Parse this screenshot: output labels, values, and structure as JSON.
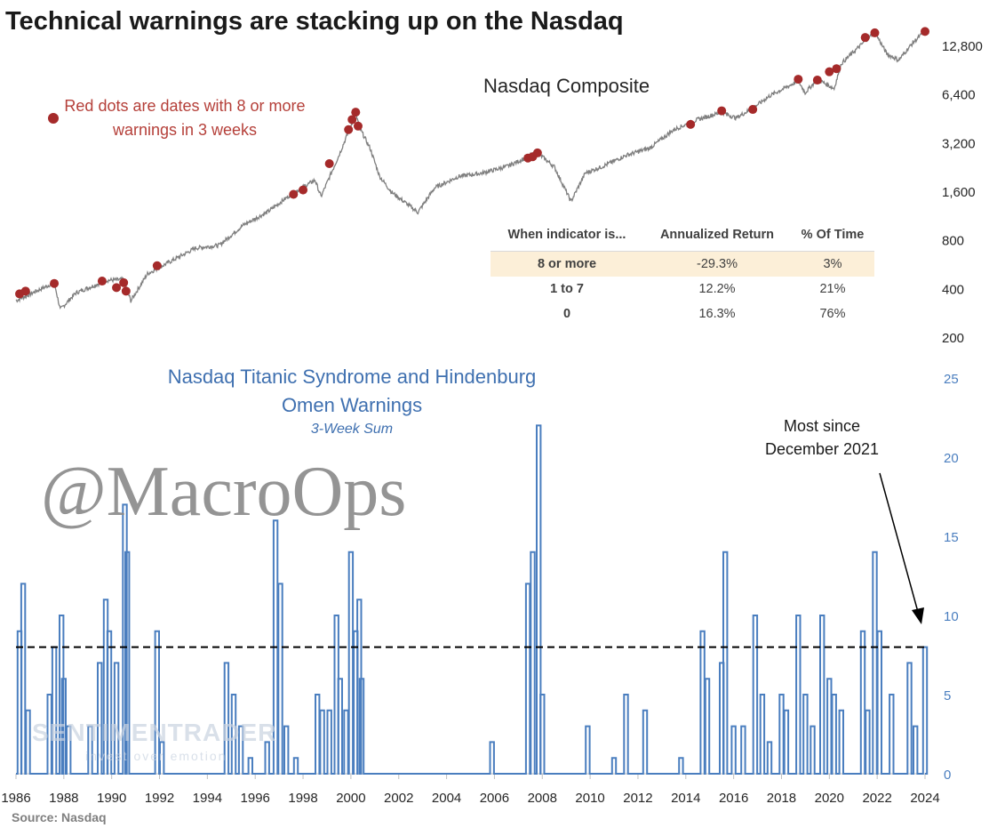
{
  "title": "Technical warnings are stacking up on the Nasdaq",
  "source": "Source: Nasdaq",
  "watermark": "@MacroOps",
  "logo_text": "SENTIMENTRADER",
  "logo_sub": "invest over emotion",
  "legend_text": "Red dots are dates with 8 or more warnings in 3 weeks",
  "annotation": "Most since December 2021",
  "colors": {
    "price_line": "#7f7f7f",
    "dots": "#a52a2a",
    "warnings": "#4a7ebf",
    "threshold": "#000000",
    "highlight_row": "#fcefd8"
  },
  "table": {
    "headers": [
      "When indicator is...",
      "Annualized Return",
      "% Of Time"
    ],
    "rows": [
      {
        "label": "8 or more",
        "ret": "-29.3%",
        "time": "3%"
      },
      {
        "label": "1 to 7",
        "ret": "12.2%",
        "time": "21%"
      },
      {
        "label": "0",
        "ret": "16.3%",
        "time": "76%"
      }
    ]
  },
  "chart_data": [
    {
      "type": "line",
      "title": "Nasdaq Composite",
      "y_scale": "log",
      "ylim": [
        200,
        18000
      ],
      "yticks": [
        200,
        400,
        800,
        1600,
        3200,
        6400,
        12800
      ],
      "ytick_labels": [
        "200",
        "400",
        "800",
        "1,600",
        "3,200",
        "6,400",
        "12,800"
      ],
      "series": [
        {
          "x": [
            1986,
            1987.6,
            1987.85,
            1988.5,
            1989.8,
            1990.5,
            1990.8,
            1991.5,
            1992.5,
            1993.5,
            1994.5,
            1995.5,
            1996.5,
            1997.5,
            1998.5,
            1998.75,
            1999.5,
            2000.2,
            2000.4,
            2000.8,
            2001.2,
            2001.7,
            2002.8,
            2003.5,
            2004.5,
            2005.5,
            2006.5,
            2007.8,
            2008.5,
            2009.2,
            2009.8,
            2010.5,
            2011.5,
            2012.5,
            2013.5,
            2014.5,
            2015.5,
            2016.1,
            2016.8,
            2017.5,
            2018.7,
            2018.99,
            2019.5,
            2020.2,
            2020.5,
            2021.9,
            2022.4,
            2022.9,
            2023.5,
            2024.0
          ],
          "values": [
            340,
            440,
            300,
            380,
            455,
            460,
            340,
            500,
            600,
            720,
            750,
            1000,
            1200,
            1550,
            1900,
            1500,
            2700,
            4900,
            3900,
            3000,
            2000,
            1600,
            1200,
            1700,
            2000,
            2100,
            2300,
            2800,
            2300,
            1400,
            2100,
            2300,
            2700,
            3000,
            3900,
            4500,
            5000,
            4600,
            5300,
            6300,
            7800,
            6600,
            8000,
            7000,
            10000,
            15700,
            11500,
            10500,
            13500,
            15800
          ]
        }
      ],
      "red_dots": [
        {
          "x": 1986.15,
          "y": 375
        },
        {
          "x": 1986.4,
          "y": 390
        },
        {
          "x": 1987.6,
          "y": 435
        },
        {
          "x": 1989.6,
          "y": 450
        },
        {
          "x": 1990.2,
          "y": 410
        },
        {
          "x": 1990.5,
          "y": 440
        },
        {
          "x": 1990.6,
          "y": 390
        },
        {
          "x": 1991.9,
          "y": 560
        },
        {
          "x": 1997.6,
          "y": 1550
        },
        {
          "x": 1998.0,
          "y": 1650
        },
        {
          "x": 1999.1,
          "y": 2400
        },
        {
          "x": 1999.9,
          "y": 3900
        },
        {
          "x": 2000.05,
          "y": 4500
        },
        {
          "x": 2000.2,
          "y": 5000
        },
        {
          "x": 2000.3,
          "y": 4100
        },
        {
          "x": 2007.4,
          "y": 2600
        },
        {
          "x": 2007.6,
          "y": 2650
        },
        {
          "x": 2007.8,
          "y": 2800
        },
        {
          "x": 2014.2,
          "y": 4200
        },
        {
          "x": 2015.5,
          "y": 5100
        },
        {
          "x": 2016.8,
          "y": 5200
        },
        {
          "x": 2018.7,
          "y": 8000
        },
        {
          "x": 2019.5,
          "y": 7900
        },
        {
          "x": 2020.0,
          "y": 8900
        },
        {
          "x": 2020.3,
          "y": 9300
        },
        {
          "x": 2021.5,
          "y": 14500
        },
        {
          "x": 2021.9,
          "y": 15500
        },
        {
          "x": 2024.0,
          "y": 15800
        }
      ]
    },
    {
      "type": "bar",
      "title": "Nasdaq Titanic Syndrome and Hindenburg Omen Warnings",
      "subtitle": "3-Week Sum",
      "ylim": [
        0,
        25
      ],
      "yticks": [
        0,
        5,
        10,
        15,
        20,
        25
      ],
      "threshold": 8,
      "x_ticks": [
        "1986",
        "1988",
        "1990",
        "1992",
        "1994",
        "1996",
        "1998",
        "2000",
        "2002",
        "2004",
        "2006",
        "2008",
        "2010",
        "2012",
        "2014",
        "2016",
        "2018",
        "2020",
        "2022",
        "2024"
      ],
      "spikes": [
        {
          "x": 1986.15,
          "v": 9
        },
        {
          "x": 1986.3,
          "v": 12
        },
        {
          "x": 1986.5,
          "v": 4
        },
        {
          "x": 1987.4,
          "v": 5
        },
        {
          "x": 1987.6,
          "v": 8
        },
        {
          "x": 1987.9,
          "v": 10
        },
        {
          "x": 1988.0,
          "v": 6
        },
        {
          "x": 1988.2,
          "v": 3
        },
        {
          "x": 1989.1,
          "v": 3
        },
        {
          "x": 1989.5,
          "v": 7
        },
        {
          "x": 1989.75,
          "v": 11
        },
        {
          "x": 1989.9,
          "v": 9
        },
        {
          "x": 1990.2,
          "v": 7
        },
        {
          "x": 1990.55,
          "v": 17
        },
        {
          "x": 1990.65,
          "v": 14
        },
        {
          "x": 1991.9,
          "v": 9
        },
        {
          "x": 1992.1,
          "v": 2
        },
        {
          "x": 1994.8,
          "v": 7
        },
        {
          "x": 1995.1,
          "v": 5
        },
        {
          "x": 1995.4,
          "v": 3
        },
        {
          "x": 1995.8,
          "v": 1
        },
        {
          "x": 1996.5,
          "v": 2
        },
        {
          "x": 1996.85,
          "v": 16
        },
        {
          "x": 1997.05,
          "v": 12
        },
        {
          "x": 1997.3,
          "v": 3
        },
        {
          "x": 1997.7,
          "v": 1
        },
        {
          "x": 1998.6,
          "v": 5
        },
        {
          "x": 1998.8,
          "v": 4
        },
        {
          "x": 1999.1,
          "v": 4
        },
        {
          "x": 1999.4,
          "v": 10
        },
        {
          "x": 1999.55,
          "v": 6
        },
        {
          "x": 1999.8,
          "v": 4
        },
        {
          "x": 2000.0,
          "v": 14
        },
        {
          "x": 2000.2,
          "v": 9
        },
        {
          "x": 2000.35,
          "v": 11
        },
        {
          "x": 2000.45,
          "v": 6
        },
        {
          "x": 2005.9,
          "v": 2
        },
        {
          "x": 2007.4,
          "v": 12
        },
        {
          "x": 2007.6,
          "v": 14
        },
        {
          "x": 2007.85,
          "v": 22
        },
        {
          "x": 2008.0,
          "v": 5
        },
        {
          "x": 2009.9,
          "v": 3
        },
        {
          "x": 2011.0,
          "v": 1
        },
        {
          "x": 2011.5,
          "v": 5
        },
        {
          "x": 2012.3,
          "v": 4
        },
        {
          "x": 2013.8,
          "v": 1
        },
        {
          "x": 2014.7,
          "v": 9
        },
        {
          "x": 2014.9,
          "v": 6
        },
        {
          "x": 2015.5,
          "v": 7
        },
        {
          "x": 2015.65,
          "v": 14
        },
        {
          "x": 2016.0,
          "v": 3
        },
        {
          "x": 2016.4,
          "v": 3
        },
        {
          "x": 2016.9,
          "v": 10
        },
        {
          "x": 2017.2,
          "v": 5
        },
        {
          "x": 2017.5,
          "v": 2
        },
        {
          "x": 2018.0,
          "v": 5
        },
        {
          "x": 2018.2,
          "v": 4
        },
        {
          "x": 2018.7,
          "v": 10
        },
        {
          "x": 2019.0,
          "v": 5
        },
        {
          "x": 2019.3,
          "v": 3
        },
        {
          "x": 2019.7,
          "v": 10
        },
        {
          "x": 2020.0,
          "v": 6
        },
        {
          "x": 2020.2,
          "v": 5
        },
        {
          "x": 2020.5,
          "v": 4
        },
        {
          "x": 2021.4,
          "v": 9
        },
        {
          "x": 2021.6,
          "v": 4
        },
        {
          "x": 2021.9,
          "v": 14
        },
        {
          "x": 2022.1,
          "v": 9
        },
        {
          "x": 2022.6,
          "v": 5
        },
        {
          "x": 2023.35,
          "v": 7
        },
        {
          "x": 2023.6,
          "v": 3
        },
        {
          "x": 2024.0,
          "v": 8
        }
      ]
    }
  ]
}
